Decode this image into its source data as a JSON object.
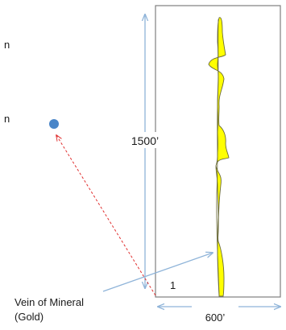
{
  "labels": {
    "height_dim": "1500’",
    "width_dim": "600’",
    "corner_number": "1",
    "vein_line1": "Vein of Mineral",
    "vein_line2": "(Gold)"
  },
  "clipped_text_fragments": [
    "n",
    "n"
  ],
  "colors": {
    "dimension_arrow": "#8fb4d9",
    "claim_border": "#7f7f7f",
    "vein_fill": "#ffff00",
    "vein_outline": "#6b6b3a",
    "dashed_arrow": "#e03030",
    "point": "#4a86c8"
  }
}
